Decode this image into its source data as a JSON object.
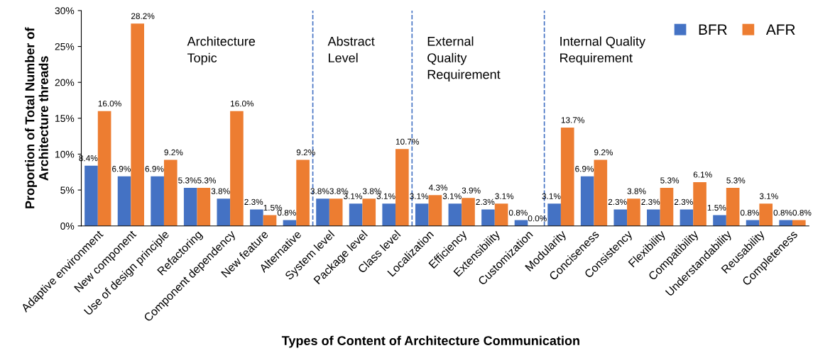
{
  "chart_data": {
    "type": "bar",
    "xlabel": "Types of Content of Architecture Communication",
    "ylabel": "Proportion of Total Number of\nArchitecture threads",
    "categories": [
      "Adaptive environment",
      "New component",
      "Use of design principle",
      "Refactoring",
      "Component dependency",
      "New feature",
      "Alternative",
      "System level",
      "Package level",
      "Class level",
      "Localization",
      "Efficiency",
      "Extensibility",
      "Customization",
      "Modularity",
      "Conciseness",
      "Consistency",
      "Flexibility",
      "Compatibility",
      "Understandability",
      "Reusability",
      "Completeness"
    ],
    "series": [
      {
        "name": "BFR",
        "color": "#4472c4",
        "values": [
          8.4,
          6.9,
          6.9,
          5.3,
          3.8,
          2.3,
          0.8,
          3.8,
          3.1,
          3.1,
          3.1,
          3.1,
          2.3,
          0.8,
          3.1,
          6.9,
          2.3,
          2.3,
          2.3,
          1.5,
          0.8,
          0.8
        ],
        "value_labels": [
          "8.4%",
          "6.9%",
          "6.9%",
          "5.3%",
          "3.8%",
          "2.3%",
          "0.8%",
          "3.8%",
          "3.1%",
          "3.1%",
          "3.1%",
          "3.1%",
          "2.3%",
          "0.8%",
          "3.1%",
          "6.9%",
          "2.3%",
          "2.3%",
          "2.3%",
          "1.5%",
          "0.8%",
          "0.8%"
        ]
      },
      {
        "name": "AFR",
        "color": "#ed7d31",
        "values": [
          16.0,
          28.2,
          9.2,
          5.3,
          16.0,
          1.5,
          9.2,
          3.8,
          3.8,
          10.7,
          4.3,
          3.9,
          3.1,
          0.0,
          13.7,
          9.2,
          3.8,
          5.3,
          6.1,
          5.3,
          3.1,
          0.8
        ],
        "value_labels": [
          "16.0%",
          "28.2%",
          "9.2%",
          "5.3%",
          "16.0%",
          "1.5%",
          "9.2%",
          "3.8%",
          "3.8%",
          "10.7%",
          "4.3%",
          "3.9%",
          "3.1%",
          "0.0%",
          "13.7%",
          "9.2%",
          "3.8%",
          "5.3%",
          "6.1%",
          "5.3%",
          "3.1%",
          "0.8%"
        ]
      }
    ],
    "ylim": [
      0,
      30
    ],
    "yticks": [
      {
        "value": 0,
        "label": "0%"
      },
      {
        "value": 5,
        "label": "5%"
      },
      {
        "value": 10,
        "label": "10%"
      },
      {
        "value": 15,
        "label": "15%"
      },
      {
        "value": 20,
        "label": "20%"
      },
      {
        "value": 25,
        "label": "25%"
      },
      {
        "value": 30,
        "label": "30%"
      }
    ],
    "annotations": [
      "Architecture\nTopic",
      "Abstract\nLevel",
      "External\nQuality\nRequirement",
      "Internal Quality\nRequirement"
    ],
    "grid": false,
    "legend": "top right"
  }
}
